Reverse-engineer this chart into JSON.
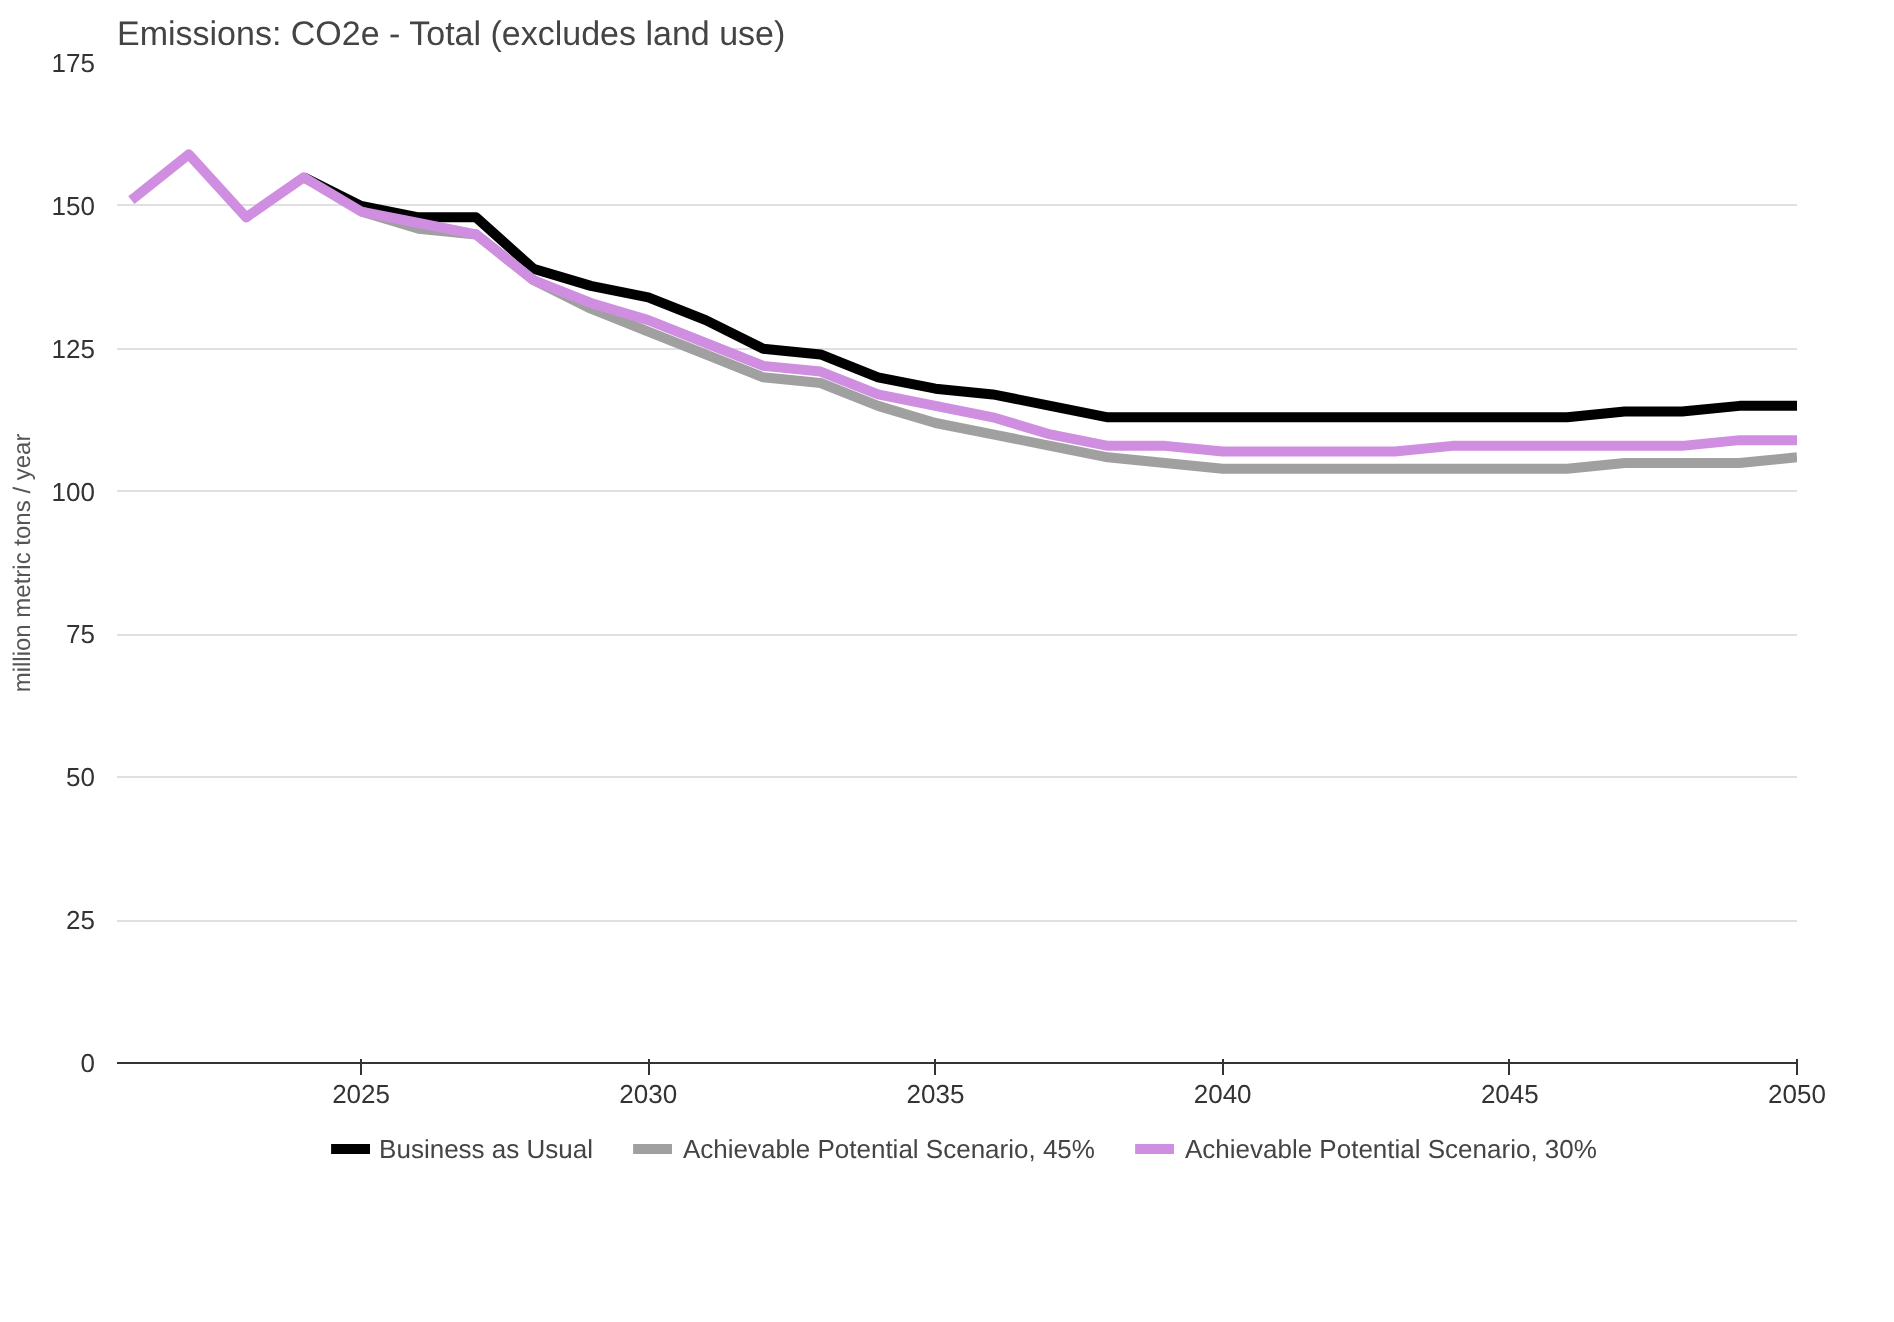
{
  "chart_data": {
    "type": "line",
    "title": "Emissions: CO2e - Total (excludes land use)",
    "ylabel": "million metric tons / year",
    "x": [
      2021,
      2022,
      2023,
      2024,
      2025,
      2026,
      2027,
      2028,
      2029,
      2030,
      2031,
      2032,
      2033,
      2034,
      2035,
      2036,
      2037,
      2038,
      2039,
      2040,
      2041,
      2042,
      2043,
      2044,
      2045,
      2046,
      2047,
      2048,
      2049,
      2050
    ],
    "series": [
      {
        "name": "Business as Usual",
        "color": "#000000",
        "values": [
          null,
          null,
          null,
          155,
          150,
          148,
          148,
          139,
          136,
          134,
          130,
          125,
          124,
          120,
          118,
          117,
          115,
          113,
          113,
          113,
          113,
          113,
          113,
          113,
          113,
          113,
          114,
          114,
          115,
          115
        ]
      },
      {
        "name": "Achievable Potential Scenario, 45%",
        "color": "#a0a0a0",
        "values": [
          null,
          null,
          null,
          null,
          149,
          146,
          145,
          137,
          132,
          128,
          124,
          120,
          119,
          115,
          112,
          110,
          108,
          106,
          105,
          104,
          104,
          104,
          104,
          104,
          104,
          104,
          105,
          105,
          105,
          106
        ]
      },
      {
        "name": "Achievable Potential Scenario, 30%",
        "color": "#d08ee0",
        "values": [
          151,
          159,
          148,
          155,
          149,
          147,
          145,
          137,
          133,
          130,
          126,
          122,
          121,
          117,
          115,
          113,
          110,
          108,
          108,
          107,
          107,
          107,
          107,
          108,
          108,
          108,
          108,
          108,
          109,
          109
        ]
      }
    ],
    "xlim": [
      2020.75,
      2050
    ],
    "xticks": [
      2025,
      2030,
      2035,
      2040,
      2045,
      2050
    ],
    "ylim": [
      0,
      175
    ],
    "yticks": [
      0,
      25,
      50,
      75,
      100,
      125,
      150,
      175
    ],
    "grid": "y",
    "legend": "bottom",
    "marker": "none",
    "line_style": "solid"
  }
}
